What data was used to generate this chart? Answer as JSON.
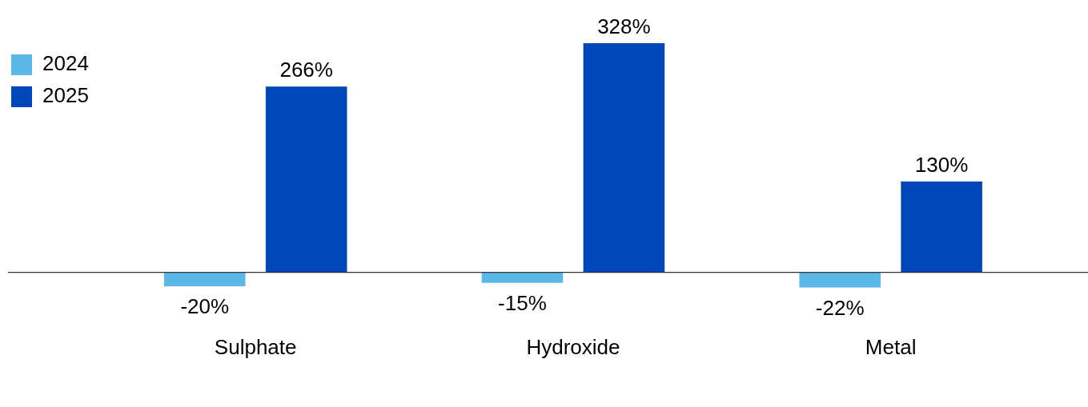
{
  "chart_data": {
    "type": "bar",
    "categories": [
      "Sulphate",
      "Hydroxide",
      "Metal"
    ],
    "series": [
      {
        "name": "2024",
        "color": "#5bb8e9",
        "values": [
          -20,
          -15,
          -22
        ],
        "value_labels": [
          "-20%",
          "-15%",
          "-22%"
        ]
      },
      {
        "name": "2025",
        "color": "#0047bb",
        "values": [
          266,
          328,
          130
        ],
        "value_labels": [
          "266%",
          "328%",
          "130%"
        ]
      }
    ],
    "legend": "top left"
  }
}
